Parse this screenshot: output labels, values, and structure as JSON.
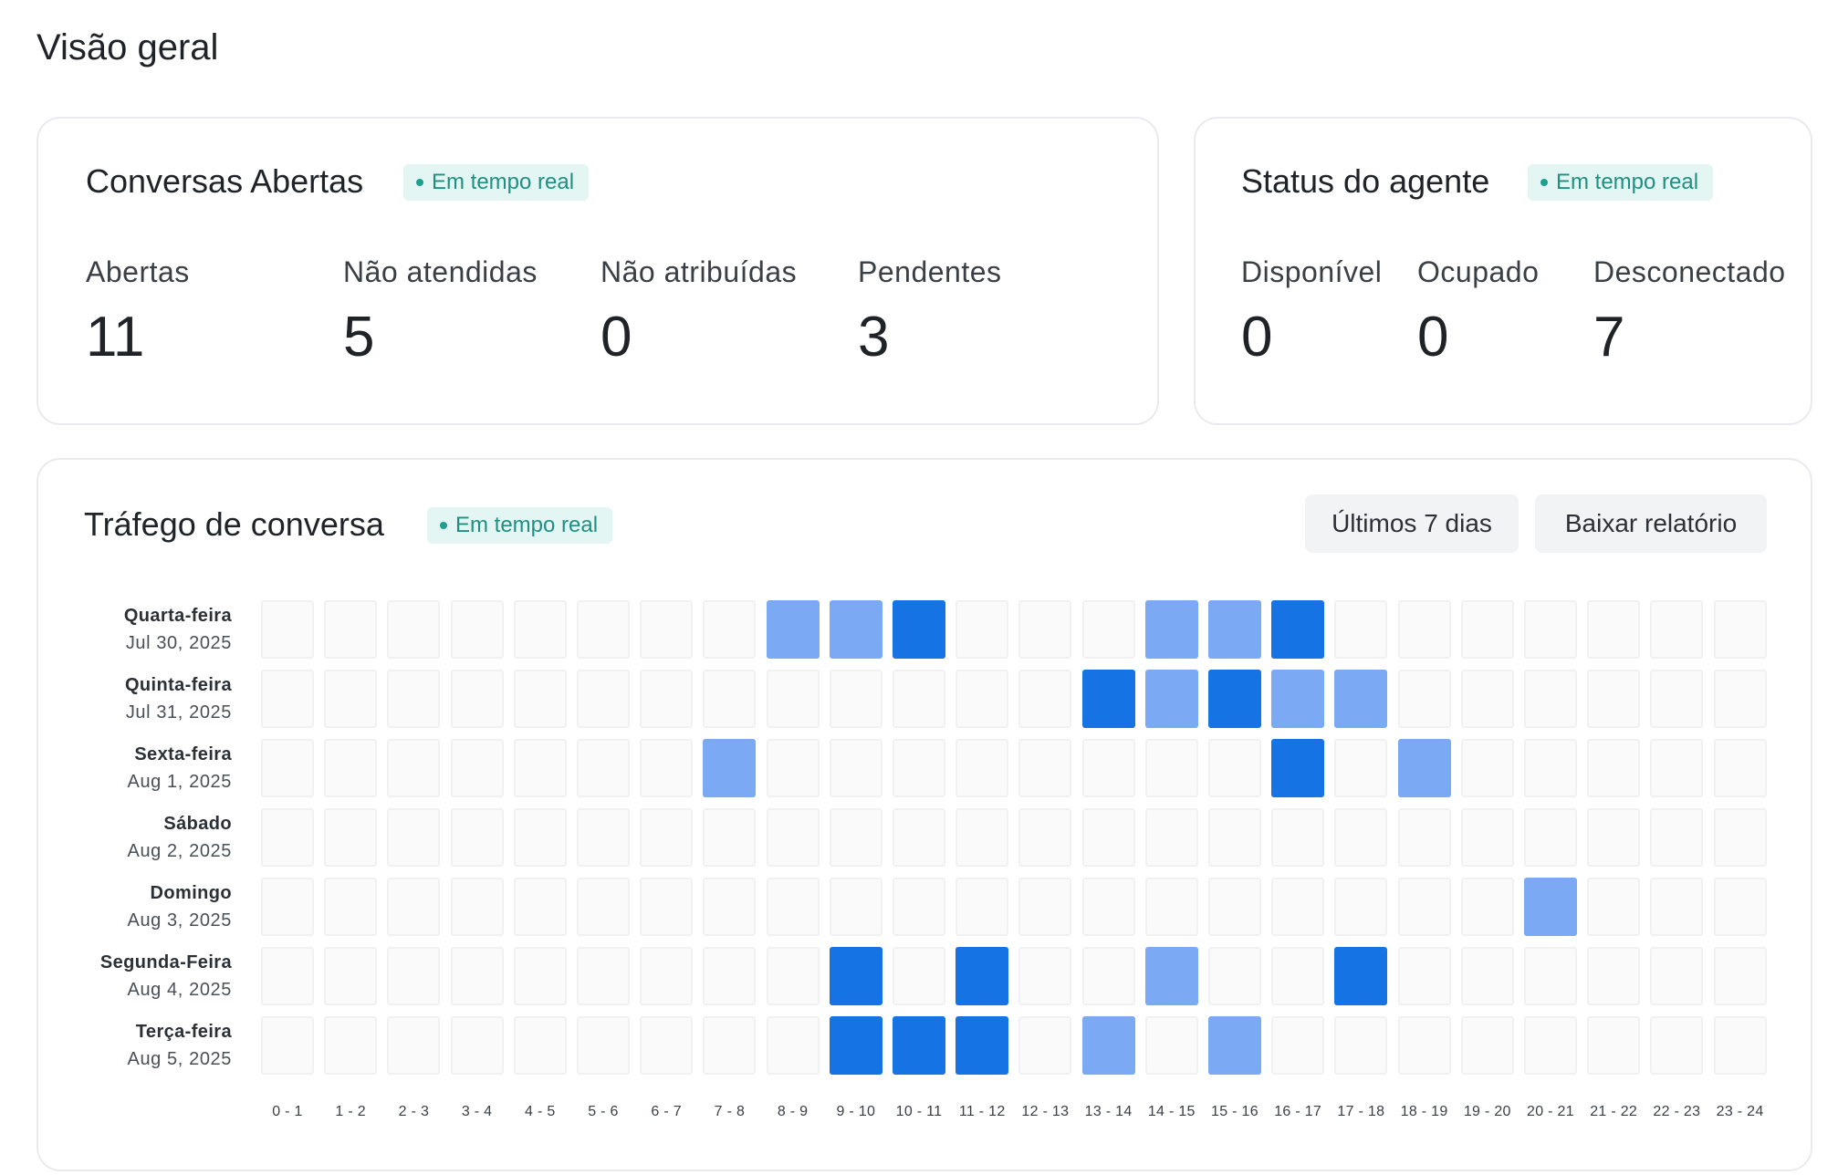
{
  "page_title": "Visão geral",
  "open_conversations": {
    "title": "Conversas Abertas",
    "badge": "Em tempo real",
    "metrics": [
      {
        "label": "Abertas",
        "value": "11"
      },
      {
        "label": "Não atendidas",
        "value": "5"
      },
      {
        "label": "Não atribuídas",
        "value": "0"
      },
      {
        "label": "Pendentes",
        "value": "3"
      }
    ]
  },
  "agent_status": {
    "title": "Status do agente",
    "badge": "Em tempo real",
    "metrics": [
      {
        "label": "Disponível",
        "value": "0"
      },
      {
        "label": "Ocupado",
        "value": "0"
      },
      {
        "label": "Desconectado",
        "value": "7"
      }
    ]
  },
  "traffic": {
    "title": "Tráfego de conversa",
    "badge": "Em tempo real",
    "range_button": "Últimos 7 dias",
    "download_button": "Baixar relatório",
    "colors": {
      "empty": "#fafafb",
      "medium": "#7ba9f4",
      "high": "#1673e4",
      "badge_bg": "#e4f6f4",
      "badge_text": "#1f8f82"
    },
    "hours": [
      "0 - 1",
      "1 - 2",
      "2 - 3",
      "3 - 4",
      "4 - 5",
      "5 - 6",
      "6 - 7",
      "7 - 8",
      "8 - 9",
      "9 - 10",
      "10 - 11",
      "11 - 12",
      "12 - 13",
      "13 - 14",
      "14 - 15",
      "15 - 16",
      "16 - 17",
      "17 - 18",
      "18 - 19",
      "19 - 20",
      "20 - 21",
      "21 - 22",
      "22 - 23",
      "23 - 24"
    ],
    "rows": [
      {
        "day": "Quarta-feira",
        "date": "Jul 30, 2025",
        "levels": [
          0,
          0,
          0,
          0,
          0,
          0,
          0,
          0,
          1,
          1,
          2,
          0,
          0,
          0,
          1,
          1,
          2,
          0,
          0,
          0,
          0,
          0,
          0,
          0
        ]
      },
      {
        "day": "Quinta-feira",
        "date": "Jul 31, 2025",
        "levels": [
          0,
          0,
          0,
          0,
          0,
          0,
          0,
          0,
          0,
          0,
          0,
          0,
          0,
          2,
          1,
          2,
          1,
          1,
          0,
          0,
          0,
          0,
          0,
          0
        ]
      },
      {
        "day": "Sexta-feira",
        "date": "Aug 1, 2025",
        "levels": [
          0,
          0,
          0,
          0,
          0,
          0,
          0,
          1,
          0,
          0,
          0,
          0,
          0,
          0,
          0,
          0,
          2,
          0,
          1,
          0,
          0,
          0,
          0,
          0
        ]
      },
      {
        "day": "Sábado",
        "date": "Aug 2, 2025",
        "levels": [
          0,
          0,
          0,
          0,
          0,
          0,
          0,
          0,
          0,
          0,
          0,
          0,
          0,
          0,
          0,
          0,
          0,
          0,
          0,
          0,
          0,
          0,
          0,
          0
        ]
      },
      {
        "day": "Domingo",
        "date": "Aug 3, 2025",
        "levels": [
          0,
          0,
          0,
          0,
          0,
          0,
          0,
          0,
          0,
          0,
          0,
          0,
          0,
          0,
          0,
          0,
          0,
          0,
          0,
          0,
          1,
          0,
          0,
          0
        ]
      },
      {
        "day": "Segunda-Feira",
        "date": "Aug 4, 2025",
        "levels": [
          0,
          0,
          0,
          0,
          0,
          0,
          0,
          0,
          0,
          2,
          0,
          2,
          0,
          0,
          1,
          0,
          0,
          2,
          0,
          0,
          0,
          0,
          0,
          0
        ]
      },
      {
        "day": "Terça-feira",
        "date": "Aug 5, 2025",
        "levels": [
          0,
          0,
          0,
          0,
          0,
          0,
          0,
          0,
          0,
          2,
          2,
          2,
          0,
          1,
          0,
          1,
          0,
          0,
          0,
          0,
          0,
          0,
          0,
          0
        ]
      }
    ]
  }
}
